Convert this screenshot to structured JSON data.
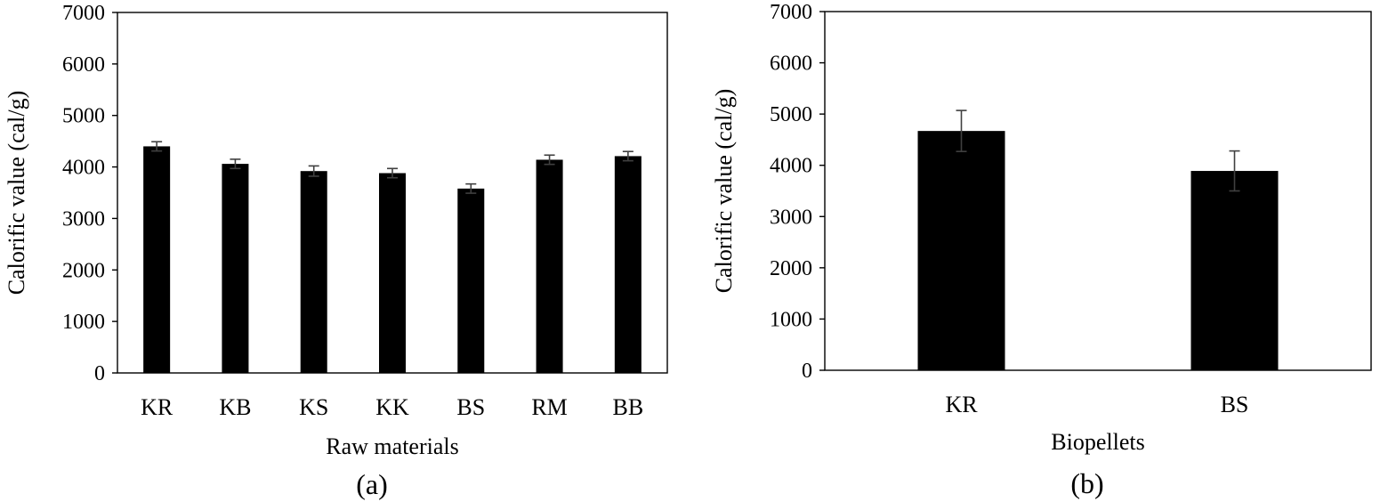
{
  "chart_data": [
    {
      "type": "bar",
      "panel_label": "(a)",
      "xlabel": "Raw materials",
      "ylabel": "Calorific value (cal/g)",
      "ylim": [
        0,
        7000
      ],
      "yticks": [
        0,
        1000,
        2000,
        3000,
        4000,
        5000,
        6000,
        7000
      ],
      "categories": [
        "KR",
        "KB",
        "KS",
        "KK",
        "BS",
        "RM",
        "BB"
      ],
      "values": [
        4400,
        4060,
        3920,
        3880,
        3580,
        4140,
        4210
      ],
      "errors": [
        90,
        90,
        100,
        90,
        90,
        90,
        90
      ],
      "bar_color": "#000000",
      "error_color": "#404040",
      "grid": false,
      "legend": "none"
    },
    {
      "type": "bar",
      "panel_label": "(b)",
      "xlabel": "Biopellets",
      "ylabel": "Calorific value (cal/g)",
      "ylim": [
        0,
        7000
      ],
      "yticks": [
        0,
        1000,
        2000,
        3000,
        4000,
        5000,
        6000,
        7000
      ],
      "categories": [
        "KR",
        "BS"
      ],
      "values": [
        4670,
        3890
      ],
      "errors": [
        400,
        390
      ],
      "bar_color": "#000000",
      "error_color": "#404040",
      "grid": false,
      "legend": "none"
    }
  ]
}
